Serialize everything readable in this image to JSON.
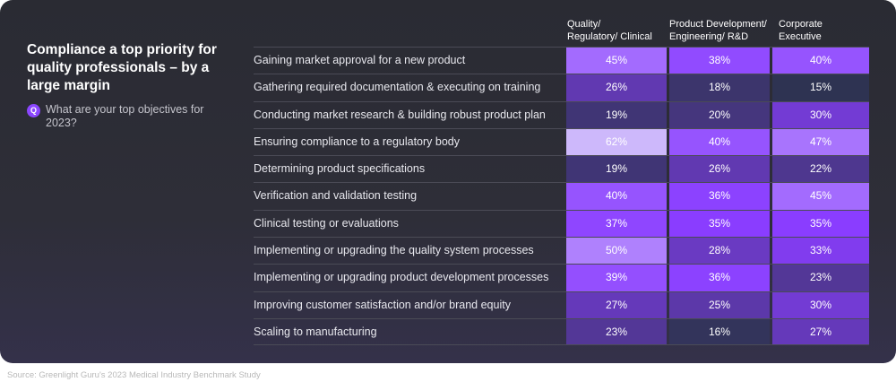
{
  "title": "Compliance a top priority for quality professionals – by a large margin",
  "question_icon": "Q",
  "question": "What are your top objectives for 2023?",
  "source": "Source: Greenlight Guru's 2023 Medical Industry Benchmark Study",
  "colors": {
    "low": "#2e3352",
    "high": "#cdb8fb",
    "mid": "#8a3dff"
  },
  "chart_data": {
    "type": "table",
    "title": "Compliance a top priority for quality professionals – by a large margin",
    "columns": [
      {
        "line1": "Quality/",
        "line2": "Regulatory/ Clinical"
      },
      {
        "line1": "Product Development/",
        "line2": "Engineering/ R&D"
      },
      {
        "line1": "Corporate",
        "line2": "Executive"
      }
    ],
    "rows": [
      {
        "label": "Gaining market approval for a new product",
        "values": [
          45,
          38,
          40
        ]
      },
      {
        "label": "Gathering required documentation & executing on training",
        "values": [
          26,
          18,
          15
        ]
      },
      {
        "label": "Conducting market research & building robust product plan",
        "values": [
          19,
          20,
          30
        ]
      },
      {
        "label": "Ensuring compliance to a regulatory body",
        "values": [
          62,
          40,
          47
        ]
      },
      {
        "label": "Determining product specifications",
        "values": [
          19,
          26,
          22
        ]
      },
      {
        "label": "Verification and validation testing",
        "values": [
          40,
          36,
          45
        ]
      },
      {
        "label": "Clinical testing or evaluations",
        "values": [
          37,
          35,
          35
        ]
      },
      {
        "label": "Implementing or upgrading the quality system processes",
        "values": [
          50,
          28,
          33
        ]
      },
      {
        "label": "Implementing or upgrading product development processes",
        "values": [
          39,
          36,
          23
        ]
      },
      {
        "label": "Improving customer satisfaction and/or brand equity",
        "values": [
          27,
          25,
          30
        ]
      },
      {
        "label": "Scaling to manufacturing",
        "values": [
          23,
          16,
          27
        ]
      }
    ],
    "unit": "%"
  }
}
